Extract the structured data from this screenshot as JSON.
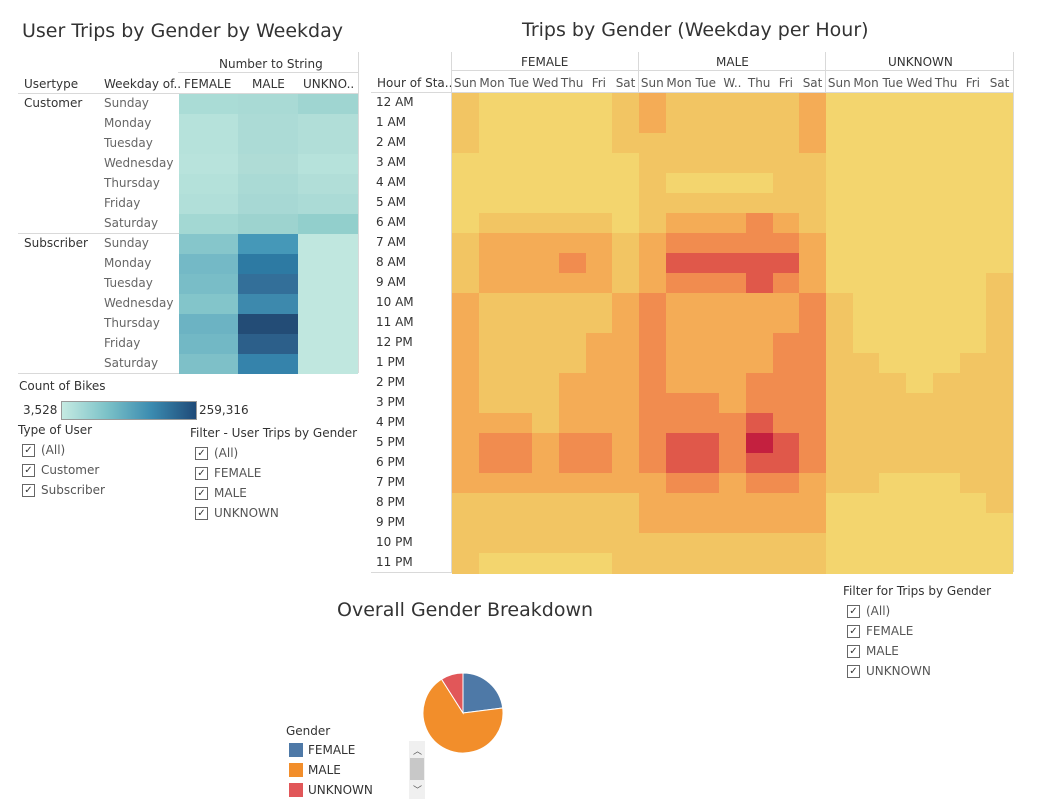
{
  "dashboard": {
    "left_title": "User Trips by Gender by Weekday",
    "right_title": "Trips by Gender (Weekday per Hour)",
    "pie_title": "Overall Gender Breakdown"
  },
  "left_table": {
    "measure_header": "Number to String",
    "col_headers": [
      "Usertype",
      "Weekday of..",
      "FEMALE",
      "MALE",
      "UNKNO.."
    ],
    "groups": [
      {
        "usertype": "Customer",
        "days": [
          "Sunday",
          "Monday",
          "Tuesday",
          "Wednesday",
          "Thursday",
          "Friday",
          "Saturday"
        ]
      },
      {
        "usertype": "Subscriber",
        "days": [
          "Sunday",
          "Monday",
          "Tuesday",
          "Wednesday",
          "Thursday",
          "Friday",
          "Saturday"
        ]
      }
    ],
    "cell_colors": [
      [
        "#aadcd6",
        "#a9dad5",
        "#9fd5d1"
      ],
      [
        "#b6e2db",
        "#acdbd6",
        "#b1ded8"
      ],
      [
        "#b6e2db",
        "#acdbd6",
        "#b1ded8"
      ],
      [
        "#b8e3dc",
        "#afdcd6",
        "#b6e2db"
      ],
      [
        "#b4e1da",
        "#aadad5",
        "#b1ded8"
      ],
      [
        "#b1dfd9",
        "#a7d8d4",
        "#abdbd6"
      ],
      [
        "#a3d8d3",
        "#9dd3cf",
        "#92cfcc"
      ],
      [
        "#86c6cb",
        "#4598b8",
        "#c0e7df"
      ],
      [
        "#74b9c6",
        "#2d7aa3",
        "#c0e7df"
      ],
      [
        "#79bdc7",
        "#336f99",
        "#c0e7df"
      ],
      [
        "#83c5ca",
        "#3d89ad",
        "#c0e7df"
      ],
      [
        "#6cb3c3",
        "#234c76",
        "#c0e7df"
      ],
      [
        "#72b8c5",
        "#2c5f8a",
        "#c0e7df"
      ],
      [
        "#7ec0c8",
        "#3583ab",
        "#c0e7df"
      ]
    ]
  },
  "color_legend": {
    "title": "Count of Bikes",
    "min_label": "3,528",
    "max_label": "259,316",
    "min_color": "#c5eae2",
    "max_color": "#1f4a78"
  },
  "type_filter": {
    "title": "Type of User",
    "items": [
      "(All)",
      "Customer",
      "Subscriber"
    ]
  },
  "gender_filter_left": {
    "title": "Filter - User Trips by Gender",
    "items": [
      "(All)",
      "FEMALE",
      "MALE",
      "UNKNOWN"
    ]
  },
  "heatmap": {
    "row_header": "Hour of Sta..",
    "genders": [
      "FEMALE",
      "MALE",
      "UNKNOWN"
    ],
    "days": [
      [
        "Sun",
        "Mon",
        "Tue",
        "Wed",
        "Thu",
        "Fri",
        "Sat"
      ],
      [
        "Sun",
        "Mon",
        "Tue",
        "W..",
        "Thu",
        "Fri",
        "Sat"
      ],
      [
        "Sun",
        "Mon",
        "Tue",
        "Wed",
        "Thu",
        "Fri",
        "Sat"
      ]
    ],
    "hours": [
      "12 AM",
      "1 AM",
      "2 AM",
      "3 AM",
      "4 AM",
      "5 AM",
      "6 AM",
      "7 AM",
      "8 AM",
      "9 AM",
      "10 AM",
      "11 AM",
      "12 PM",
      "1 PM",
      "2 PM",
      "3 PM",
      "4 PM",
      "5 PM",
      "6 PM",
      "7 PM",
      "8 PM",
      "9 PM",
      "10 PM",
      "11 PM"
    ],
    "color_scale": [
      "#f3d56e",
      "#f2c563",
      "#f4ac56",
      "#f18c4f",
      "#e0584a",
      "#c4203f"
    ],
    "female": [
      [
        1,
        0,
        0,
        0,
        0,
        0,
        1
      ],
      [
        1,
        0,
        0,
        0,
        0,
        0,
        1
      ],
      [
        1,
        0,
        0,
        0,
        0,
        0,
        1
      ],
      [
        0,
        0,
        0,
        0,
        0,
        0,
        0
      ],
      [
        0,
        0,
        0,
        0,
        0,
        0,
        0
      ],
      [
        0,
        0,
        0,
        0,
        0,
        0,
        0
      ],
      [
        0,
        1,
        1,
        1,
        1,
        1,
        0
      ],
      [
        1,
        2,
        2,
        2,
        2,
        2,
        1
      ],
      [
        1,
        2,
        2,
        2,
        3,
        2,
        1
      ],
      [
        1,
        2,
        2,
        2,
        2,
        2,
        1
      ],
      [
        2,
        1,
        1,
        1,
        1,
        1,
        2
      ],
      [
        2,
        1,
        1,
        1,
        1,
        1,
        2
      ],
      [
        2,
        1,
        1,
        1,
        1,
        2,
        2
      ],
      [
        2,
        1,
        1,
        1,
        1,
        2,
        2
      ],
      [
        2,
        1,
        1,
        1,
        2,
        2,
        2
      ],
      [
        2,
        1,
        1,
        1,
        2,
        2,
        2
      ],
      [
        2,
        2,
        2,
        1,
        2,
        2,
        2
      ],
      [
        2,
        3,
        3,
        2,
        3,
        3,
        2
      ],
      [
        2,
        3,
        3,
        2,
        3,
        3,
        2
      ],
      [
        2,
        2,
        2,
        2,
        2,
        2,
        2
      ],
      [
        1,
        1,
        1,
        1,
        1,
        1,
        1
      ],
      [
        1,
        1,
        1,
        1,
        1,
        1,
        1
      ],
      [
        1,
        1,
        1,
        1,
        1,
        1,
        1
      ],
      [
        1,
        0,
        0,
        0,
        0,
        0,
        1
      ]
    ],
    "male": [
      [
        2,
        1,
        1,
        1,
        1,
        1,
        2
      ],
      [
        2,
        1,
        1,
        1,
        1,
        1,
        2
      ],
      [
        1,
        1,
        1,
        1,
        1,
        1,
        2
      ],
      [
        1,
        1,
        1,
        1,
        1,
        1,
        1
      ],
      [
        1,
        0,
        0,
        0,
        0,
        1,
        1
      ],
      [
        1,
        1,
        1,
        1,
        1,
        1,
        1
      ],
      [
        1,
        2,
        2,
        2,
        3,
        2,
        1
      ],
      [
        2,
        3,
        3,
        3,
        3,
        3,
        2
      ],
      [
        2,
        4,
        4,
        4,
        4,
        4,
        2
      ],
      [
        2,
        3,
        3,
        3,
        4,
        3,
        2
      ],
      [
        3,
        2,
        2,
        2,
        2,
        2,
        3
      ],
      [
        3,
        2,
        2,
        2,
        2,
        2,
        3
      ],
      [
        3,
        2,
        2,
        2,
        2,
        3,
        3
      ],
      [
        3,
        2,
        2,
        2,
        2,
        3,
        3
      ],
      [
        3,
        2,
        2,
        2,
        3,
        3,
        3
      ],
      [
        3,
        3,
        3,
        2,
        3,
        3,
        3
      ],
      [
        3,
        3,
        3,
        3,
        4,
        3,
        3
      ],
      [
        3,
        4,
        4,
        3,
        5,
        4,
        3
      ],
      [
        3,
        4,
        4,
        3,
        4,
        4,
        3
      ],
      [
        2,
        3,
        3,
        2,
        3,
        3,
        2
      ],
      [
        2,
        2,
        2,
        2,
        2,
        2,
        2
      ],
      [
        2,
        2,
        2,
        2,
        2,
        2,
        2
      ],
      [
        1,
        1,
        1,
        1,
        1,
        1,
        1
      ],
      [
        1,
        1,
        1,
        1,
        1,
        1,
        1
      ]
    ],
    "unknown": [
      [
        0,
        0,
        0,
        0,
        0,
        0,
        0
      ],
      [
        0,
        0,
        0,
        0,
        0,
        0,
        0
      ],
      [
        0,
        0,
        0,
        0,
        0,
        0,
        0
      ],
      [
        0,
        0,
        0,
        0,
        0,
        0,
        0
      ],
      [
        0,
        0,
        0,
        0,
        0,
        0,
        0
      ],
      [
        0,
        0,
        0,
        0,
        0,
        0,
        0
      ],
      [
        0,
        0,
        0,
        0,
        0,
        0,
        0
      ],
      [
        0,
        0,
        0,
        0,
        0,
        0,
        0
      ],
      [
        0,
        0,
        0,
        0,
        0,
        0,
        0
      ],
      [
        0,
        0,
        0,
        0,
        0,
        0,
        1
      ],
      [
        1,
        0,
        0,
        0,
        0,
        0,
        1
      ],
      [
        1,
        0,
        0,
        0,
        0,
        0,
        1
      ],
      [
        1,
        0,
        0,
        0,
        0,
        0,
        1
      ],
      [
        1,
        1,
        0,
        0,
        0,
        1,
        1
      ],
      [
        1,
        1,
        1,
        0,
        1,
        1,
        1
      ],
      [
        1,
        1,
        1,
        1,
        1,
        1,
        1
      ],
      [
        1,
        1,
        1,
        1,
        1,
        1,
        1
      ],
      [
        1,
        1,
        1,
        1,
        1,
        1,
        1
      ],
      [
        1,
        1,
        1,
        1,
        1,
        1,
        1
      ],
      [
        1,
        1,
        0,
        0,
        0,
        1,
        1
      ],
      [
        0,
        0,
        0,
        0,
        0,
        0,
        1
      ],
      [
        0,
        0,
        0,
        0,
        0,
        0,
        0
      ],
      [
        0,
        0,
        0,
        0,
        0,
        0,
        0
      ],
      [
        0,
        0,
        0,
        0,
        0,
        0,
        0
      ]
    ]
  },
  "gender_filter_right": {
    "title": "Filter for Trips by Gender",
    "items": [
      "(All)",
      "FEMALE",
      "MALE",
      "UNKNOWN"
    ]
  },
  "pie": {
    "legend_title": "Gender",
    "slices": [
      {
        "label": "FEMALE",
        "value": 23,
        "color": "#4e79a7"
      },
      {
        "label": "MALE",
        "value": 68,
        "color": "#f28e2b"
      },
      {
        "label": "UNKNOWN",
        "value": 9,
        "color": "#e15759"
      }
    ]
  }
}
